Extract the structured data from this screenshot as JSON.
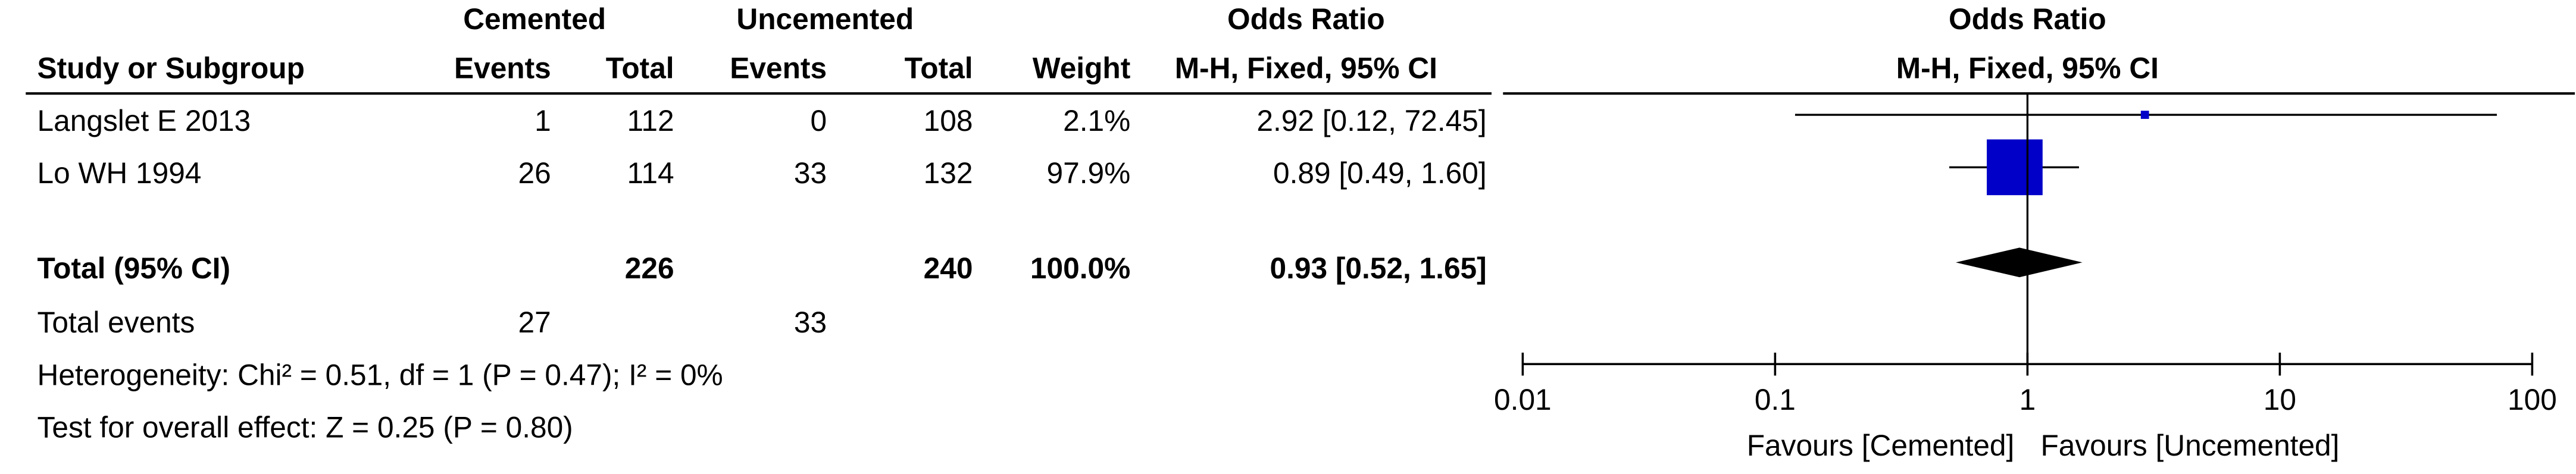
{
  "table": {
    "group_headers": [
      "Cemented",
      "Uncemented",
      "Odds Ratio"
    ],
    "columns": [
      "Study or Subgroup",
      "Events",
      "Total",
      "Events",
      "Total",
      "Weight",
      "M-H, Fixed, 95% CI"
    ],
    "rows": [
      [
        "Langslet E 2013",
        1,
        112,
        0,
        108
      ],
      [
        "Lo WH 1994",
        26,
        114,
        33,
        132
      ]
    ],
    "total": [
      "Total (95% CI)",
      226,
      240,
      "100.0%"
    ],
    "total_events": [
      "Total events",
      27,
      33
    ],
    "heterogeneity": "Heterogeneity: Chi² = 0.51, df = 1 (P = 0.47); I² = 0%",
    "overall_effect": "Test for overall effect: Z = 0.25 (P = 0.80)"
  },
  "chart_data": {
    "type": "forest",
    "title": "Odds Ratio",
    "subtitle": "M-H, Fixed, 95% CI",
    "values": [
      2.92,
      0.89
    ],
    "ci_low": [
      0.12,
      0.49
    ],
    "ci_high": [
      72.45,
      1.6
    ],
    "value_labels": [
      "2.92 [0.12, 72.45]",
      "0.89 [0.49, 1.60]"
    ],
    "weights": [
      2.1,
      97.9
    ],
    "weight_labels": [
      "2.1%",
      "97.9%"
    ],
    "total": {
      "value": 0.93,
      "ci_low": 0.52,
      "ci_high": 1.65,
      "value_label": "0.93 [0.52, 1.65]"
    },
    "color": "#0000c8",
    "total_color": "#000000",
    "log_x": true,
    "xlim": [
      0.01,
      100
    ],
    "xticks": [
      0.01,
      0.1,
      1,
      10,
      100
    ],
    "xlabel_left": "Favours [Cemented]",
    "xlabel_right": "Favours [Uncemented]"
  }
}
